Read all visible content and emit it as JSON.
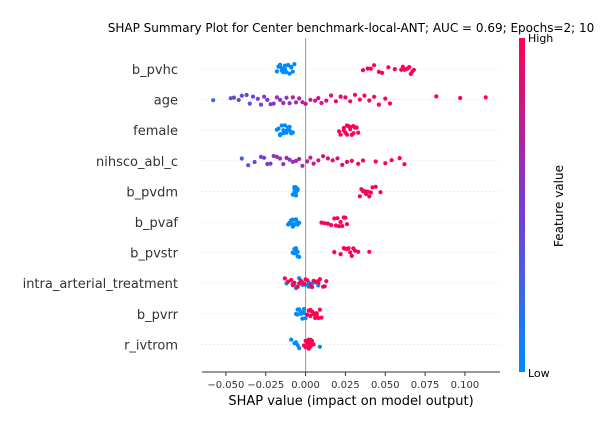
{
  "chart_data": {
    "type": "scatter",
    "title": "SHAP Summary Plot for Center benchmark-local-ANT; AUC = 0.69; Epochs=2; 10",
    "xlabel": "SHAP value (impact on model output)",
    "xlim": [
      -0.065,
      0.122
    ],
    "xticks": [
      -0.05,
      -0.025,
      0.0,
      0.025,
      0.05,
      0.075,
      0.1
    ],
    "xtick_labels": [
      "−0.050",
      "−0.025",
      "0.000",
      "0.025",
      "0.050",
      "0.075",
      "0.100"
    ],
    "features": [
      "b_pvhc",
      "age",
      "female",
      "nihsco_abl_c",
      "b_pvdm",
      "b_pvaf",
      "b_pvstr",
      "intra_arterial_treatment",
      "b_pvrr",
      "r_ivtrom"
    ],
    "colorbar": {
      "label": "Feature value",
      "high": "High",
      "low": "Low",
      "low_color": "#008bfb",
      "high_color": "#ff0052"
    },
    "series": [
      {
        "feature": "b_pvhc",
        "points": [
          [
            -0.018,
            0
          ],
          [
            -0.016,
            0
          ],
          [
            -0.015,
            0
          ],
          [
            -0.014,
            0
          ],
          [
            -0.013,
            0
          ],
          [
            -0.012,
            0
          ],
          [
            -0.011,
            0
          ],
          [
            -0.01,
            0
          ],
          [
            -0.009,
            0
          ],
          [
            -0.008,
            0
          ],
          [
            -0.007,
            0
          ],
          [
            -0.017,
            0
          ],
          [
            -0.015,
            0
          ],
          [
            -0.013,
            0
          ],
          [
            -0.011,
            0
          ],
          [
            -0.009,
            0
          ],
          [
            0.036,
            1
          ],
          [
            0.039,
            1
          ],
          [
            0.041,
            1
          ],
          [
            0.043,
            1
          ],
          [
            0.046,
            1
          ],
          [
            0.048,
            1
          ],
          [
            0.052,
            1
          ],
          [
            0.056,
            1
          ],
          [
            0.06,
            1
          ],
          [
            0.061,
            1
          ],
          [
            0.062,
            1
          ],
          [
            0.063,
            1
          ],
          [
            0.064,
            1
          ],
          [
            0.065,
            1
          ],
          [
            0.066,
            1
          ],
          [
            0.067,
            1
          ],
          [
            0.068,
            1
          ]
        ]
      },
      {
        "feature": "age",
        "points": [
          [
            -0.058,
            0.2
          ],
          [
            -0.047,
            0.3
          ],
          [
            -0.045,
            0.45
          ],
          [
            -0.042,
            0.35
          ],
          [
            -0.04,
            0.4
          ],
          [
            -0.037,
            0.5
          ],
          [
            -0.035,
            0.3
          ],
          [
            -0.033,
            0.45
          ],
          [
            -0.03,
            0.55
          ],
          [
            -0.028,
            0.4
          ],
          [
            -0.026,
            0.5
          ],
          [
            -0.024,
            0.6
          ],
          [
            -0.022,
            0.45
          ],
          [
            -0.02,
            0.55
          ],
          [
            -0.018,
            0.6
          ],
          [
            -0.016,
            0.5
          ],
          [
            -0.014,
            0.65
          ],
          [
            -0.012,
            0.55
          ],
          [
            -0.01,
            0.6
          ],
          [
            -0.008,
            0.7
          ],
          [
            -0.006,
            0.6
          ],
          [
            -0.004,
            0.7
          ],
          [
            -0.002,
            0.65
          ],
          [
            0.0,
            0.7
          ],
          [
            0.003,
            0.8
          ],
          [
            0.006,
            0.75
          ],
          [
            0.008,
            0.85
          ],
          [
            0.01,
            0.8
          ],
          [
            0.013,
            0.9
          ],
          [
            0.016,
            0.85
          ],
          [
            0.019,
            0.9
          ],
          [
            0.022,
            0.95
          ],
          [
            0.025,
            0.9
          ],
          [
            0.028,
            0.95
          ],
          [
            0.031,
            1
          ],
          [
            0.034,
            0.95
          ],
          [
            0.037,
            1
          ],
          [
            0.04,
            1
          ],
          [
            0.043,
            1
          ],
          [
            0.046,
            1
          ],
          [
            0.05,
            1
          ],
          [
            0.053,
            1
          ],
          [
            0.082,
            1
          ],
          [
            0.097,
            1
          ],
          [
            0.113,
            1
          ]
        ]
      },
      {
        "feature": "female",
        "points": [
          [
            -0.018,
            0
          ],
          [
            -0.017,
            0
          ],
          [
            -0.016,
            0
          ],
          [
            -0.015,
            0
          ],
          [
            -0.014,
            0
          ],
          [
            -0.013,
            0
          ],
          [
            -0.012,
            0
          ],
          [
            -0.011,
            0
          ],
          [
            -0.01,
            0
          ],
          [
            -0.009,
            0
          ],
          [
            -0.008,
            0
          ],
          [
            -0.016,
            0
          ],
          [
            -0.014,
            0
          ],
          [
            -0.012,
            0
          ],
          [
            -0.01,
            0
          ],
          [
            0.021,
            1
          ],
          [
            0.022,
            1
          ],
          [
            0.024,
            1
          ],
          [
            0.025,
            1
          ],
          [
            0.026,
            1
          ],
          [
            0.027,
            1
          ],
          [
            0.028,
            1
          ],
          [
            0.029,
            1
          ],
          [
            0.03,
            1
          ],
          [
            0.031,
            1
          ],
          [
            0.032,
            1
          ],
          [
            0.033,
            1
          ],
          [
            0.024,
            1
          ],
          [
            0.026,
            1
          ],
          [
            0.028,
            1
          ],
          [
            0.03,
            1
          ]
        ]
      },
      {
        "feature": "nihsco_abl_c",
        "points": [
          [
            -0.04,
            0.3
          ],
          [
            -0.036,
            0.35
          ],
          [
            -0.032,
            0.45
          ],
          [
            -0.028,
            0.4
          ],
          [
            -0.026,
            0.5
          ],
          [
            -0.024,
            0.45
          ],
          [
            -0.022,
            0.55
          ],
          [
            -0.02,
            0.5
          ],
          [
            -0.018,
            0.6
          ],
          [
            -0.016,
            0.55
          ],
          [
            -0.014,
            0.6
          ],
          [
            -0.012,
            0.65
          ],
          [
            -0.01,
            0.55
          ],
          [
            -0.008,
            0.6
          ],
          [
            -0.006,
            0.65
          ],
          [
            -0.004,
            0.7
          ],
          [
            -0.002,
            0.6
          ],
          [
            0.001,
            0.65
          ],
          [
            0.003,
            0.7
          ],
          [
            0.005,
            0.75
          ],
          [
            0.008,
            0.8
          ],
          [
            0.011,
            0.85
          ],
          [
            0.014,
            0.8
          ],
          [
            0.017,
            0.9
          ],
          [
            0.02,
            0.85
          ],
          [
            0.023,
            0.9
          ],
          [
            0.026,
            0.95
          ],
          [
            0.029,
            0.9
          ],
          [
            0.033,
            1
          ],
          [
            0.036,
            0.95
          ],
          [
            0.044,
            1
          ],
          [
            0.05,
            1
          ],
          [
            0.054,
            1
          ],
          [
            0.059,
            1
          ],
          [
            0.062,
            1
          ]
        ]
      },
      {
        "feature": "b_pvdm",
        "points": [
          [
            -0.008,
            0
          ],
          [
            -0.007,
            0
          ],
          [
            -0.006,
            0
          ],
          [
            -0.005,
            0
          ],
          [
            -0.007,
            0
          ],
          [
            -0.006,
            0
          ],
          [
            -0.005,
            0
          ],
          [
            -0.007,
            0
          ],
          [
            -0.006,
            0
          ],
          [
            -0.006,
            0
          ],
          [
            0.034,
            1
          ],
          [
            0.035,
            1
          ],
          [
            0.036,
            1
          ],
          [
            0.037,
            1
          ],
          [
            0.038,
            1
          ],
          [
            0.039,
            1
          ],
          [
            0.04,
            1
          ],
          [
            0.041,
            1
          ],
          [
            0.042,
            1
          ],
          [
            0.044,
            1
          ],
          [
            0.047,
            1
          ]
        ]
      },
      {
        "feature": "b_pvaf",
        "points": [
          [
            -0.011,
            0
          ],
          [
            -0.01,
            0
          ],
          [
            -0.009,
            0
          ],
          [
            -0.008,
            0
          ],
          [
            -0.007,
            0
          ],
          [
            -0.006,
            0
          ],
          [
            -0.005,
            0
          ],
          [
            -0.004,
            0
          ],
          [
            -0.009,
            0
          ],
          [
            -0.007,
            0
          ],
          [
            -0.005,
            0
          ],
          [
            -0.008,
            0
          ],
          [
            -0.006,
            0
          ],
          [
            0.01,
            1
          ],
          [
            0.012,
            1
          ],
          [
            0.014,
            1
          ],
          [
            0.016,
            1
          ],
          [
            0.018,
            1
          ],
          [
            0.019,
            1
          ],
          [
            0.02,
            1
          ],
          [
            0.021,
            1
          ],
          [
            0.022,
            1
          ],
          [
            0.023,
            1
          ],
          [
            0.024,
            1
          ],
          [
            0.025,
            1
          ],
          [
            0.026,
            1
          ]
        ]
      },
      {
        "feature": "b_pvstr",
        "points": [
          [
            -0.008,
            0
          ],
          [
            -0.007,
            0
          ],
          [
            -0.006,
            0
          ],
          [
            -0.005,
            0
          ],
          [
            -0.004,
            0
          ],
          [
            -0.007,
            0
          ],
          [
            -0.006,
            0
          ],
          [
            -0.005,
            0
          ],
          [
            -0.006,
            0
          ],
          [
            0.018,
            1
          ],
          [
            0.022,
            1
          ],
          [
            0.024,
            1
          ],
          [
            0.025,
            1
          ],
          [
            0.026,
            1
          ],
          [
            0.027,
            1
          ],
          [
            0.028,
            1
          ],
          [
            0.029,
            1
          ],
          [
            0.03,
            1
          ],
          [
            0.031,
            1
          ],
          [
            0.033,
            1
          ],
          [
            0.04,
            1
          ]
        ]
      },
      {
        "feature": "intra_arterial_treatment",
        "points": [
          [
            -0.012,
            0
          ],
          [
            -0.008,
            0
          ],
          [
            -0.006,
            0
          ],
          [
            -0.004,
            0
          ],
          [
            -0.002,
            0
          ],
          [
            0.0,
            0
          ],
          [
            0.002,
            0
          ],
          [
            0.004,
            0
          ],
          [
            0.006,
            0
          ],
          [
            0.008,
            0
          ],
          [
            -0.006,
            0
          ],
          [
            -0.002,
            0
          ],
          [
            0.002,
            0
          ],
          [
            0.006,
            0
          ],
          [
            -0.013,
            1
          ],
          [
            -0.011,
            1
          ],
          [
            -0.009,
            1
          ],
          [
            -0.007,
            1
          ],
          [
            -0.005,
            1
          ],
          [
            -0.003,
            1
          ],
          [
            -0.001,
            1
          ],
          [
            0.001,
            1
          ],
          [
            0.003,
            1
          ],
          [
            0.005,
            1
          ],
          [
            0.007,
            1
          ],
          [
            0.009,
            1
          ],
          [
            0.011,
            1
          ],
          [
            0.013,
            1
          ],
          [
            -0.008,
            1
          ],
          [
            -0.004,
            1
          ],
          [
            0.0,
            1
          ],
          [
            0.004,
            1
          ],
          [
            0.008,
            1
          ],
          [
            0.012,
            1
          ]
        ]
      },
      {
        "feature": "b_pvrr",
        "points": [
          [
            -0.006,
            0
          ],
          [
            -0.005,
            0
          ],
          [
            -0.004,
            0
          ],
          [
            -0.003,
            0
          ],
          [
            -0.002,
            0
          ],
          [
            -0.001,
            0
          ],
          [
            0.0,
            0
          ],
          [
            -0.005,
            0
          ],
          [
            -0.003,
            0
          ],
          [
            -0.001,
            0
          ],
          [
            0.001,
            1
          ],
          [
            0.002,
            1
          ],
          [
            0.003,
            1
          ],
          [
            0.004,
            1
          ],
          [
            0.005,
            1
          ],
          [
            0.006,
            1
          ],
          [
            0.007,
            1
          ],
          [
            0.008,
            1
          ],
          [
            0.009,
            1
          ],
          [
            0.01,
            1
          ],
          [
            0.003,
            1
          ],
          [
            0.005,
            1
          ],
          [
            0.007,
            1
          ]
        ]
      },
      {
        "feature": "r_ivtrom",
        "points": [
          [
            -0.009,
            0
          ],
          [
            -0.007,
            0
          ],
          [
            -0.006,
            0
          ],
          [
            -0.005,
            0
          ],
          [
            -0.004,
            0
          ],
          [
            0.009,
            0
          ],
          [
            0.004,
            0
          ],
          [
            -0.001,
            1
          ],
          [
            0.0,
            1
          ],
          [
            0.001,
            1
          ],
          [
            0.002,
            1
          ],
          [
            0.003,
            1
          ],
          [
            0.004,
            1
          ],
          [
            0.005,
            1
          ],
          [
            0.0,
            1
          ],
          [
            0.001,
            1
          ],
          [
            0.002,
            1
          ],
          [
            0.003,
            1
          ],
          [
            0.004,
            1
          ],
          [
            0.001,
            1
          ],
          [
            0.002,
            1
          ],
          [
            0.003,
            1
          ],
          [
            0.002,
            1
          ],
          [
            0.003,
            1
          ],
          [
            0.002,
            1
          ]
        ]
      }
    ]
  }
}
